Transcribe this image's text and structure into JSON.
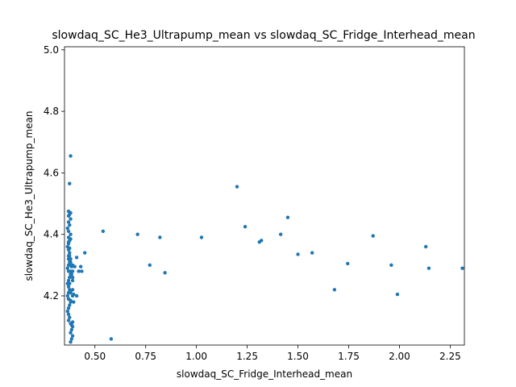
{
  "chart_data": {
    "type": "scatter",
    "title": "slowdaq_SC_He3_Ultrapump_mean vs slowdaq_SC_Fridge_Interhead_mean",
    "xlabel": "slowdaq_SC_Fridge_Interhead_mean",
    "ylabel": "slowdaq_SC_He3_Ultrapump_mean",
    "xlim": [
      0.35,
      2.32
    ],
    "ylim": [
      4.04,
      5.01
    ],
    "xticks": [
      "0.50",
      "0.75",
      "1.00",
      "1.25",
      "1.50",
      "1.75",
      "2.00",
      "2.25"
    ],
    "yticks": [
      "4.2",
      "4.4",
      "4.6",
      "4.8",
      "5.0"
    ],
    "grid": false,
    "marker_color": "#1f77b4",
    "series": [
      {
        "x": [
          0.38,
          0.375,
          0.37,
          0.38,
          0.375,
          0.37,
          0.38,
          0.37,
          0.375,
          0.365,
          0.37,
          0.38,
          0.37,
          0.375,
          0.37,
          0.365,
          0.37,
          0.375,
          0.37,
          0.38,
          0.375,
          0.37,
          0.365,
          0.37,
          0.38,
          0.375,
          0.37,
          0.365,
          0.37,
          0.375,
          0.37,
          0.365,
          0.37,
          0.38,
          0.375,
          0.37,
          0.365,
          0.37,
          0.375,
          0.37,
          0.38,
          0.39,
          0.385,
          0.38,
          0.39,
          0.385,
          0.38,
          0.39,
          0.385,
          0.38,
          0.39,
          0.38,
          0.395,
          0.39,
          0.38,
          0.385,
          0.39,
          0.41,
          0.4,
          0.42,
          0.43,
          0.435,
          0.45,
          0.41,
          0.395,
          0.385,
          0.38,
          0.39,
          0.375,
          0.37,
          0.38,
          0.39,
          0.375,
          0.38,
          0.37,
          0.375,
          0.38,
          0.37,
          0.39,
          0.54,
          0.58,
          0.71,
          0.77,
          0.82,
          0.845,
          1.025,
          1.2,
          1.24,
          1.31,
          1.32,
          1.415,
          1.45,
          1.5,
          1.57,
          1.68,
          1.745,
          1.87,
          1.96,
          1.99,
          2.13,
          2.145,
          2.31
        ],
        "y": [
          4.655,
          4.565,
          4.475,
          4.47,
          4.465,
          4.46,
          4.45,
          4.44,
          4.43,
          4.42,
          4.41,
          4.4,
          4.39,
          4.38,
          4.37,
          4.36,
          4.35,
          4.34,
          4.33,
          4.32,
          4.31,
          4.3,
          4.29,
          4.28,
          4.27,
          4.26,
          4.25,
          4.24,
          4.23,
          4.22,
          4.21,
          4.2,
          4.19,
          4.18,
          4.17,
          4.16,
          4.15,
          4.14,
          4.13,
          4.12,
          4.11,
          4.1,
          4.09,
          4.08,
          4.07,
          4.06,
          4.05,
          4.115,
          4.105,
          4.185,
          4.2,
          4.21,
          4.18,
          4.3,
          4.31,
          4.295,
          4.28,
          4.325,
          4.295,
          4.28,
          4.295,
          4.28,
          4.34,
          4.2,
          4.205,
          4.27,
          4.28,
          4.26,
          4.355,
          4.375,
          4.385,
          4.25,
          4.24,
          4.3,
          4.32,
          4.33,
          4.215,
          4.19,
          4.22,
          4.41,
          4.06,
          4.4,
          4.3,
          4.39,
          4.275,
          4.39,
          4.555,
          4.425,
          4.375,
          4.38,
          4.4,
          4.455,
          4.335,
          4.34,
          4.22,
          4.305,
          4.395,
          4.3,
          4.205,
          4.36,
          4.29,
          4.29
        ]
      }
    ]
  }
}
